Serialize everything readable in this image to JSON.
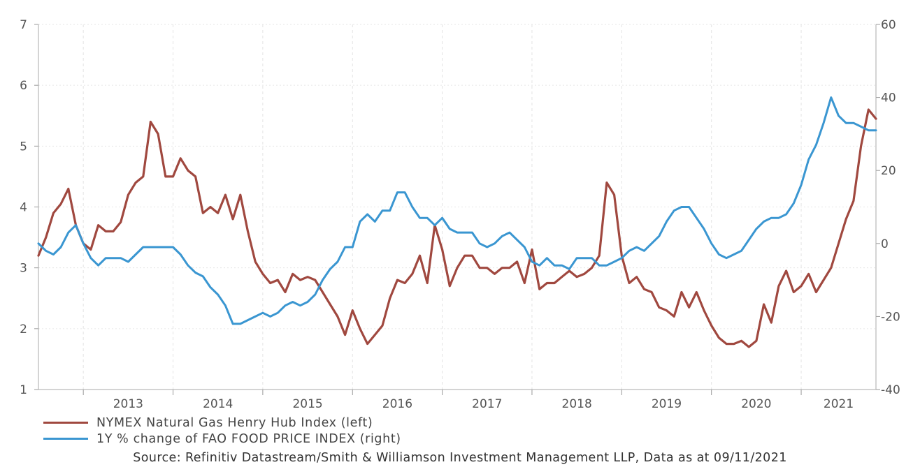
{
  "chart_data": {
    "type": "line",
    "x_axis": {
      "tick_labels": [
        "2013",
        "2014",
        "2015",
        "2016",
        "2017",
        "2018",
        "2019",
        "2020",
        "2021"
      ],
      "range": [
        "2012-07",
        "2021-11"
      ]
    },
    "y_left": {
      "range": [
        1,
        7
      ],
      "ticks": [
        "1",
        "2",
        "3",
        "4",
        "5",
        "6",
        "7"
      ]
    },
    "y_right": {
      "range": [
        -40,
        60
      ],
      "ticks": [
        "-40",
        "-20",
        "0",
        "20",
        "40",
        "60"
      ]
    },
    "grid": "vertical dashed and horizontal dotted",
    "legend_position": "bottom-left",
    "series": [
      {
        "name": "NYMEX Natural Gas Henry Hub Index (left)",
        "axis": "left",
        "color": "#A0483F",
        "points": [
          [
            "2012-07",
            3.2
          ],
          [
            "2012-08",
            3.5
          ],
          [
            "2012-09",
            3.9
          ],
          [
            "2012-10",
            4.05
          ],
          [
            "2012-11",
            4.3
          ],
          [
            "2012-12",
            3.7
          ],
          [
            "2013-01",
            3.4
          ],
          [
            "2013-02",
            3.3
          ],
          [
            "2013-03",
            3.7
          ],
          [
            "2013-04",
            3.6
          ],
          [
            "2013-05",
            3.6
          ],
          [
            "2013-06",
            3.75
          ],
          [
            "2013-07",
            4.2
          ],
          [
            "2013-08",
            4.4
          ],
          [
            "2013-09",
            4.5
          ],
          [
            "2013-10",
            5.4
          ],
          [
            "2013-11",
            5.2
          ],
          [
            "2013-12",
            4.5
          ],
          [
            "2014-01",
            4.5
          ],
          [
            "2014-02",
            4.8
          ],
          [
            "2014-03",
            4.6
          ],
          [
            "2014-04",
            4.5
          ],
          [
            "2014-05",
            3.9
          ],
          [
            "2014-06",
            4.0
          ],
          [
            "2014-07",
            3.9
          ],
          [
            "2014-08",
            4.2
          ],
          [
            "2014-09",
            3.8
          ],
          [
            "2014-10",
            4.2
          ],
          [
            "2014-11",
            3.6
          ],
          [
            "2014-12",
            3.1
          ],
          [
            "2015-01",
            2.9
          ],
          [
            "2015-02",
            2.75
          ],
          [
            "2015-03",
            2.8
          ],
          [
            "2015-04",
            2.6
          ],
          [
            "2015-05",
            2.9
          ],
          [
            "2015-06",
            2.8
          ],
          [
            "2015-07",
            2.85
          ],
          [
            "2015-08",
            2.8
          ],
          [
            "2015-09",
            2.6
          ],
          [
            "2015-10",
            2.4
          ],
          [
            "2015-11",
            2.2
          ],
          [
            "2015-12",
            1.9
          ],
          [
            "2016-01",
            2.3
          ],
          [
            "2016-02",
            2.0
          ],
          [
            "2016-03",
            1.75
          ],
          [
            "2016-04",
            1.9
          ],
          [
            "2016-05",
            2.05
          ],
          [
            "2016-06",
            2.5
          ],
          [
            "2016-07",
            2.8
          ],
          [
            "2016-08",
            2.75
          ],
          [
            "2016-09",
            2.9
          ],
          [
            "2016-10",
            3.2
          ],
          [
            "2016-11",
            2.75
          ],
          [
            "2016-12",
            3.7
          ],
          [
            "2017-01",
            3.3
          ],
          [
            "2017-02",
            2.7
          ],
          [
            "2017-03",
            3.0
          ],
          [
            "2017-04",
            3.2
          ],
          [
            "2017-05",
            3.2
          ],
          [
            "2017-06",
            3.0
          ],
          [
            "2017-07",
            3.0
          ],
          [
            "2017-08",
            2.9
          ],
          [
            "2017-09",
            3.0
          ],
          [
            "2017-10",
            3.0
          ],
          [
            "2017-11",
            3.1
          ],
          [
            "2017-12",
            2.75
          ],
          [
            "2018-01",
            3.3
          ],
          [
            "2018-02",
            2.65
          ],
          [
            "2018-03",
            2.75
          ],
          [
            "2018-04",
            2.75
          ],
          [
            "2018-05",
            2.85
          ],
          [
            "2018-06",
            2.95
          ],
          [
            "2018-07",
            2.85
          ],
          [
            "2018-08",
            2.9
          ],
          [
            "2018-09",
            3.0
          ],
          [
            "2018-10",
            3.2
          ],
          [
            "2018-11",
            4.4
          ],
          [
            "2018-12",
            4.2
          ],
          [
            "2019-01",
            3.2
          ],
          [
            "2019-02",
            2.75
          ],
          [
            "2019-03",
            2.85
          ],
          [
            "2019-04",
            2.65
          ],
          [
            "2019-05",
            2.6
          ],
          [
            "2019-06",
            2.35
          ],
          [
            "2019-07",
            2.3
          ],
          [
            "2019-08",
            2.2
          ],
          [
            "2019-09",
            2.6
          ],
          [
            "2019-10",
            2.35
          ],
          [
            "2019-11",
            2.6
          ],
          [
            "2019-12",
            2.3
          ],
          [
            "2020-01",
            2.05
          ],
          [
            "2020-02",
            1.85
          ],
          [
            "2020-03",
            1.75
          ],
          [
            "2020-04",
            1.75
          ],
          [
            "2020-05",
            1.8
          ],
          [
            "2020-06",
            1.7
          ],
          [
            "2020-07",
            1.8
          ],
          [
            "2020-08",
            2.4
          ],
          [
            "2020-09",
            2.1
          ],
          [
            "2020-10",
            2.7
          ],
          [
            "2020-11",
            2.95
          ],
          [
            "2020-12",
            2.6
          ],
          [
            "2021-01",
            2.7
          ],
          [
            "2021-02",
            2.9
          ],
          [
            "2021-03",
            2.6
          ],
          [
            "2021-04",
            2.8
          ],
          [
            "2021-05",
            3.0
          ],
          [
            "2021-06",
            3.4
          ],
          [
            "2021-07",
            3.8
          ],
          [
            "2021-08",
            4.1
          ],
          [
            "2021-09",
            5.0
          ],
          [
            "2021-10",
            5.6
          ],
          [
            "2021-11",
            5.45
          ]
        ]
      },
      {
        "name": "1Y % change of FAO FOOD PRICE INDEX (right)",
        "axis": "right",
        "color": "#3A96D1",
        "points": [
          [
            "2012-07",
            0
          ],
          [
            "2012-08",
            -2
          ],
          [
            "2012-09",
            -3
          ],
          [
            "2012-10",
            -1
          ],
          [
            "2012-11",
            3
          ],
          [
            "2012-12",
            5
          ],
          [
            "2013-01",
            0
          ],
          [
            "2013-02",
            -4
          ],
          [
            "2013-03",
            -6
          ],
          [
            "2013-04",
            -4
          ],
          [
            "2013-05",
            -4
          ],
          [
            "2013-06",
            -4
          ],
          [
            "2013-07",
            -5
          ],
          [
            "2013-08",
            -3
          ],
          [
            "2013-09",
            -1
          ],
          [
            "2013-10",
            -1
          ],
          [
            "2013-11",
            -1
          ],
          [
            "2013-12",
            -1
          ],
          [
            "2014-01",
            -1
          ],
          [
            "2014-02",
            -3
          ],
          [
            "2014-03",
            -6
          ],
          [
            "2014-04",
            -8
          ],
          [
            "2014-05",
            -9
          ],
          [
            "2014-06",
            -12
          ],
          [
            "2014-07",
            -14
          ],
          [
            "2014-08",
            -17
          ],
          [
            "2014-09",
            -22
          ],
          [
            "2014-10",
            -22
          ],
          [
            "2014-11",
            -21
          ],
          [
            "2014-12",
            -20
          ],
          [
            "2015-01",
            -19
          ],
          [
            "2015-02",
            -20
          ],
          [
            "2015-03",
            -19
          ],
          [
            "2015-04",
            -17
          ],
          [
            "2015-05",
            -16
          ],
          [
            "2015-06",
            -17
          ],
          [
            "2015-07",
            -16
          ],
          [
            "2015-08",
            -14
          ],
          [
            "2015-09",
            -10
          ],
          [
            "2015-10",
            -7
          ],
          [
            "2015-11",
            -5
          ],
          [
            "2015-12",
            -1
          ],
          [
            "2016-01",
            -1
          ],
          [
            "2016-02",
            6
          ],
          [
            "2016-03",
            8
          ],
          [
            "2016-04",
            6
          ],
          [
            "2016-05",
            9
          ],
          [
            "2016-06",
            9
          ],
          [
            "2016-07",
            14
          ],
          [
            "2016-08",
            14
          ],
          [
            "2016-09",
            10
          ],
          [
            "2016-10",
            7
          ],
          [
            "2016-11",
            7
          ],
          [
            "2016-12",
            5
          ],
          [
            "2017-01",
            7
          ],
          [
            "2017-02",
            4
          ],
          [
            "2017-03",
            3
          ],
          [
            "2017-04",
            3
          ],
          [
            "2017-05",
            3
          ],
          [
            "2017-06",
            0
          ],
          [
            "2017-07",
            -1
          ],
          [
            "2017-08",
            0
          ],
          [
            "2017-09",
            2
          ],
          [
            "2017-10",
            3
          ],
          [
            "2017-11",
            1
          ],
          [
            "2017-12",
            -1
          ],
          [
            "2018-01",
            -5
          ],
          [
            "2018-02",
            -6
          ],
          [
            "2018-03",
            -4
          ],
          [
            "2018-04",
            -6
          ],
          [
            "2018-05",
            -6
          ],
          [
            "2018-06",
            -7
          ],
          [
            "2018-07",
            -4
          ],
          [
            "2018-08",
            -4
          ],
          [
            "2018-09",
            -4
          ],
          [
            "2018-10",
            -6
          ],
          [
            "2018-11",
            -6
          ],
          [
            "2018-12",
            -5
          ],
          [
            "2019-01",
            -4
          ],
          [
            "2019-02",
            -2
          ],
          [
            "2019-03",
            -1
          ],
          [
            "2019-04",
            -2
          ],
          [
            "2019-05",
            0
          ],
          [
            "2019-06",
            2
          ],
          [
            "2019-07",
            6
          ],
          [
            "2019-08",
            9
          ],
          [
            "2019-09",
            10
          ],
          [
            "2019-10",
            10
          ],
          [
            "2019-11",
            7
          ],
          [
            "2019-12",
            4
          ],
          [
            "2020-01",
            0
          ],
          [
            "2020-02",
            -3
          ],
          [
            "2020-03",
            -4
          ],
          [
            "2020-04",
            -3
          ],
          [
            "2020-05",
            -2
          ],
          [
            "2020-06",
            1
          ],
          [
            "2020-07",
            4
          ],
          [
            "2020-08",
            6
          ],
          [
            "2020-09",
            7
          ],
          [
            "2020-10",
            7
          ],
          [
            "2020-11",
            8
          ],
          [
            "2020-12",
            11
          ],
          [
            "2021-01",
            16
          ],
          [
            "2021-02",
            23
          ],
          [
            "2021-03",
            27
          ],
          [
            "2021-04",
            33
          ],
          [
            "2021-05",
            40
          ],
          [
            "2021-06",
            35
          ],
          [
            "2021-07",
            33
          ],
          [
            "2021-08",
            33
          ],
          [
            "2021-09",
            32
          ],
          [
            "2021-10",
            31
          ],
          [
            "2021-11",
            31
          ]
        ]
      }
    ]
  },
  "legend": {
    "items": [
      {
        "label": "NYMEX Natural Gas Henry Hub Index (left)",
        "color": "#A0483F"
      },
      {
        "label": "1Y % change of FAO FOOD PRICE INDEX (right)",
        "color": "#3A96D1"
      }
    ]
  },
  "source": "Source: Refinitiv Datastream/Smith & Williamson Investment Management LLP, Data as at 09/11/2021"
}
